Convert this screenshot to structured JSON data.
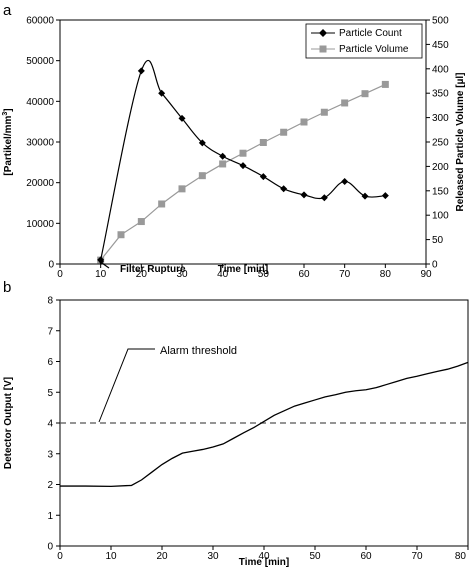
{
  "chart_data": [
    {
      "panel_label": "a",
      "type": "line",
      "xlabel": "Time [min]",
      "ylabel_left": "[Partikel/mm³]",
      "ylabel_left_main": "[Partikel/mm",
      "ylabel_left_sup": "3",
      "ylabel_left_end": "]",
      "ylabel_right": "Released Particle Volume [µl]",
      "xlim": [
        0,
        90
      ],
      "ylim_left": [
        0,
        60000
      ],
      "ylim_right": [
        0,
        500
      ],
      "x_ticks": [
        0,
        10,
        20,
        30,
        40,
        50,
        60,
        70,
        80,
        90
      ],
      "y_left_ticks": [
        0,
        10000,
        20000,
        30000,
        40000,
        50000,
        60000
      ],
      "y_right_ticks": [
        0,
        50,
        100,
        150,
        200,
        250,
        300,
        350,
        400,
        450,
        500
      ],
      "legend_position": "top-right",
      "series": [
        {
          "name": "Particle Count",
          "axis": "left",
          "marker": "diamond",
          "color": "#000000",
          "x": [
            10,
            20,
            25,
            30,
            35,
            40,
            45,
            50,
            55,
            60,
            65,
            70,
            75,
            80
          ],
          "y": [
            1000,
            47500,
            42000,
            35800,
            29800,
            26500,
            24200,
            21500,
            18500,
            17000,
            16300,
            20300,
            16700,
            16800
          ]
        },
        {
          "name": "Particle Volume",
          "axis": "right",
          "marker": "square",
          "color": "#999999",
          "x": [
            10,
            15,
            20,
            25,
            30,
            35,
            40,
            45,
            50,
            55,
            60,
            65,
            70,
            75,
            80
          ],
          "y": [
            8,
            60,
            87,
            123,
            154,
            181,
            205,
            227,
            249,
            270,
            291,
            311,
            330,
            349,
            368
          ]
        }
      ],
      "annotations": [
        {
          "text": "Filter Rupture",
          "x": 10,
          "y": 0
        }
      ]
    },
    {
      "panel_label": "b",
      "type": "line",
      "xlabel": "Time [min]",
      "ylabel": "Detector Output [V]",
      "xlim": [
        0,
        80
      ],
      "ylim": [
        0,
        8
      ],
      "x_ticks": [
        0,
        10,
        20,
        30,
        40,
        50,
        60,
        70,
        80
      ],
      "y_ticks": [
        0,
        1,
        2,
        3,
        4,
        5,
        6,
        7,
        8
      ],
      "threshold": 4,
      "series": [
        {
          "color": "#000000",
          "x": [
            0,
            5,
            10,
            14,
            16,
            18,
            20,
            22,
            24,
            26,
            28,
            30,
            32,
            34,
            36,
            38,
            40,
            42,
            44,
            46,
            48,
            50,
            52,
            54,
            56,
            58,
            60,
            62,
            64,
            66,
            68,
            70,
            72,
            74,
            76,
            78,
            80
          ],
          "y": [
            1.95,
            1.95,
            1.94,
            1.97,
            2.15,
            2.4,
            2.65,
            2.85,
            3.02,
            3.08,
            3.14,
            3.22,
            3.32,
            3.5,
            3.68,
            3.85,
            4.05,
            4.25,
            4.4,
            4.55,
            4.65,
            4.75,
            4.85,
            4.92,
            5.0,
            5.05,
            5.08,
            5.15,
            5.25,
            5.35,
            5.45,
            5.52,
            5.6,
            5.68,
            5.75,
            5.85,
            5.97
          ]
        }
      ],
      "annotations": [
        {
          "text": "Alarm threshold",
          "x": 8.3,
          "y": 4
        }
      ]
    }
  ]
}
